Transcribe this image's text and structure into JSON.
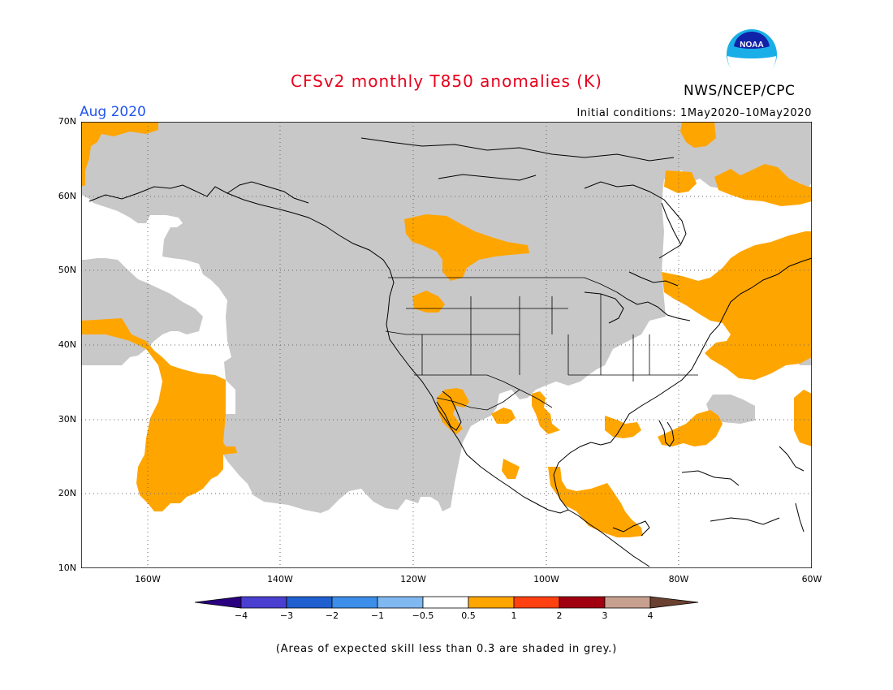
{
  "header": {
    "title": "CFSv2 monthly T850 anomalies (K)",
    "org": "NWS/NCEP/CPC",
    "logo_text": "NOAA",
    "month": "Aug 2020",
    "initial_conditions": "Initial conditions: 1May2020–10May2020"
  },
  "map": {
    "lat_labels": [
      "70N",
      "60N",
      "50N",
      "40N",
      "30N",
      "20N",
      "10N"
    ],
    "lon_labels": [
      "160W",
      "140W",
      "120W",
      "100W",
      "80W",
      "60W"
    ],
    "extent": {
      "lon_min": -170,
      "lon_max": -60,
      "lat_min": 10,
      "lat_max": 70
    },
    "colors": {
      "skill_grey": "#c8c8c8",
      "anomaly_orange": "#ffa500",
      "coast": "#000000"
    }
  },
  "colorbar": {
    "tick_labels": [
      "−4",
      "−3",
      "−2",
      "−1",
      "−0.5",
      "0.5",
      "1",
      "2",
      "3",
      "4"
    ],
    "colors": [
      "#2a0080",
      "#4a3fd0",
      "#1f5fd0",
      "#3c8ee8",
      "#80b8f0",
      "#ffffff",
      "#ffa500",
      "#ff4010",
      "#a00010",
      "#c8a090",
      "#6a4030"
    ]
  },
  "footnote": "(Areas of expected skill less than 0.3 are shaded in grey.)"
}
